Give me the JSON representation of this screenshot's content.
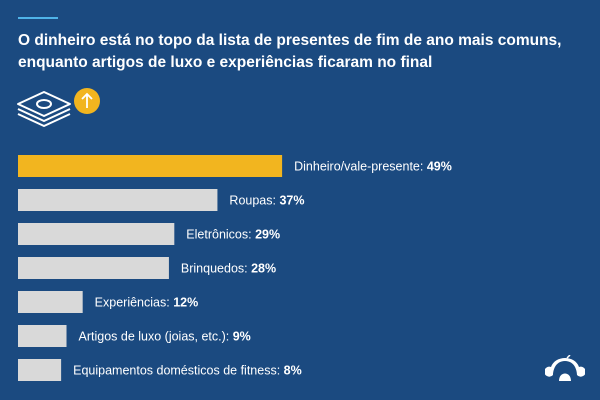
{
  "title": "O dinheiro está no topo da lista de presentes de fim de ano mais comuns, enquanto artigos de luxo e experiências ficaram no final",
  "icons": [
    "money-stack-icon",
    "arrow-up-icon",
    "surveymonkey-logo-icon"
  ],
  "colors": {
    "background": "#1b4a80",
    "highlight": "#f2b51f",
    "bar": "#d9d9d9",
    "accent_rule": "#4fb3e8"
  },
  "chart_data": {
    "type": "bar",
    "orientation": "horizontal",
    "categories": [
      "Dinheiro/vale-presente",
      "Roupas",
      "Eletrônicos",
      "Brinquedos",
      "Experiências",
      "Artigos de luxo (joias, etc.)",
      "Equipamentos domésticos de fitness"
    ],
    "values": [
      49,
      37,
      29,
      28,
      12,
      9,
      8
    ],
    "unit": "%",
    "highlighted_category": "Dinheiro/vale-presente",
    "grid": false
  }
}
